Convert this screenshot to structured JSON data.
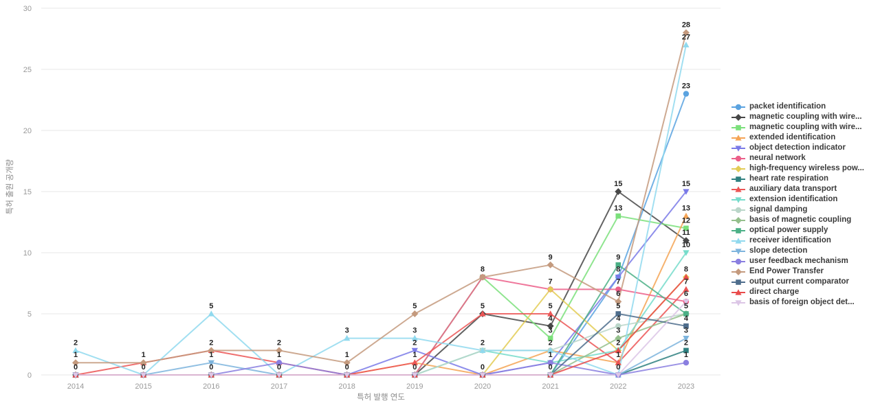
{
  "chart_data": {
    "type": "line",
    "title": "",
    "xlabel": "특허 발행 연도",
    "ylabel": "특허 출원 공개량",
    "x": [
      2014,
      2015,
      2016,
      2017,
      2018,
      2019,
      2020,
      2021,
      2022,
      2023
    ],
    "ylim": [
      0,
      30
    ],
    "yticks": [
      0,
      5,
      10,
      15,
      20,
      25,
      30
    ],
    "grid": "horizontal",
    "legend_position": "right",
    "point_labels": "unique-per-year",
    "series": [
      {
        "name": "packet identification",
        "color": "#5BA3E0",
        "marker": "circle",
        "values": [
          0,
          0,
          0,
          0,
          0,
          0,
          0,
          0,
          8,
          23
        ]
      },
      {
        "name": "magnetic coupling with wire...",
        "color": "#474747",
        "marker": "diamond",
        "values": [
          0,
          0,
          0,
          0,
          0,
          0,
          5,
          4,
          15,
          11
        ]
      },
      {
        "name": "magnetic coupling with wire...",
        "color": "#7BE07B",
        "marker": "square",
        "values": [
          0,
          0,
          0,
          0,
          0,
          0,
          8,
          3,
          13,
          12
        ]
      },
      {
        "name": "extended identification",
        "color": "#F5A455",
        "marker": "triangle-up",
        "values": [
          0,
          0,
          0,
          0,
          0,
          1,
          0,
          2,
          1,
          13
        ]
      },
      {
        "name": "object detection indicator",
        "color": "#7A7AE8",
        "marker": "triangle-down",
        "values": [
          0,
          0,
          0,
          0,
          0,
          2,
          0,
          1,
          8,
          15
        ]
      },
      {
        "name": "neural network",
        "color": "#EC5F8A",
        "marker": "circle",
        "values": [
          0,
          0,
          0,
          0,
          0,
          0,
          8,
          7,
          7,
          6
        ]
      },
      {
        "name": "high-frequency wireless pow...",
        "color": "#E3CC55",
        "marker": "diamond",
        "values": [
          0,
          0,
          0,
          0,
          0,
          0,
          0,
          7,
          2,
          8
        ]
      },
      {
        "name": "heart rate respiration",
        "color": "#2E8080",
        "marker": "square",
        "values": [
          0,
          0,
          0,
          0,
          0,
          0,
          0,
          0,
          0,
          2
        ]
      },
      {
        "name": "auxiliary data transport",
        "color": "#EC5555",
        "marker": "triangle-up",
        "values": [
          0,
          1,
          2,
          1,
          0,
          1,
          5,
          5,
          1,
          7
        ]
      },
      {
        "name": "extension identification",
        "color": "#76DCCB",
        "marker": "triangle-down",
        "values": [
          0,
          0,
          0,
          0,
          0,
          0,
          2,
          1,
          2,
          10
        ]
      },
      {
        "name": "signal damping",
        "color": "#BAD6C9",
        "marker": "circle",
        "values": [
          0,
          0,
          0,
          0,
          0,
          0,
          2,
          2,
          4,
          5
        ]
      },
      {
        "name": "basis of magnetic coupling",
        "color": "#94BF8C",
        "marker": "diamond",
        "values": [
          0,
          0,
          0,
          0,
          0,
          0,
          0,
          0,
          3,
          5
        ]
      },
      {
        "name": "optical power supply",
        "color": "#4BB086",
        "marker": "square",
        "values": [
          0,
          0,
          0,
          0,
          0,
          0,
          0,
          0,
          9,
          5
        ]
      },
      {
        "name": "receiver identification",
        "color": "#90D9EE",
        "marker": "triangle-up",
        "values": [
          2,
          0,
          5,
          0,
          3,
          3,
          2,
          2,
          0,
          27
        ]
      },
      {
        "name": "slope detection",
        "color": "#7DB4DD",
        "marker": "triangle-down",
        "values": [
          0,
          0,
          1,
          0,
          0,
          0,
          0,
          0,
          0,
          3
        ]
      },
      {
        "name": "user feedback mechanism",
        "color": "#8A7FE0",
        "marker": "circle",
        "values": [
          0,
          0,
          0,
          1,
          0,
          0,
          0,
          1,
          0,
          1
        ]
      },
      {
        "name": "End Power Transfer",
        "color": "#C49A7E",
        "marker": "diamond",
        "values": [
          1,
          1,
          2,
          2,
          1,
          5,
          8,
          9,
          6,
          28
        ]
      },
      {
        "name": "output current comparator",
        "color": "#4E6D8C",
        "marker": "square",
        "values": [
          0,
          0,
          0,
          0,
          0,
          0,
          0,
          0,
          5,
          4
        ]
      },
      {
        "name": "direct charge",
        "color": "#E94B4B",
        "marker": "triangle-up",
        "values": [
          0,
          0,
          0,
          0,
          0,
          0,
          0,
          0,
          2,
          8
        ]
      },
      {
        "name": "basis of foreign object det...",
        "color": "#DCC6E6",
        "marker": "triangle-down",
        "values": [
          0,
          0,
          0,
          0,
          0,
          0,
          0,
          0,
          0,
          6
        ]
      }
    ]
  }
}
